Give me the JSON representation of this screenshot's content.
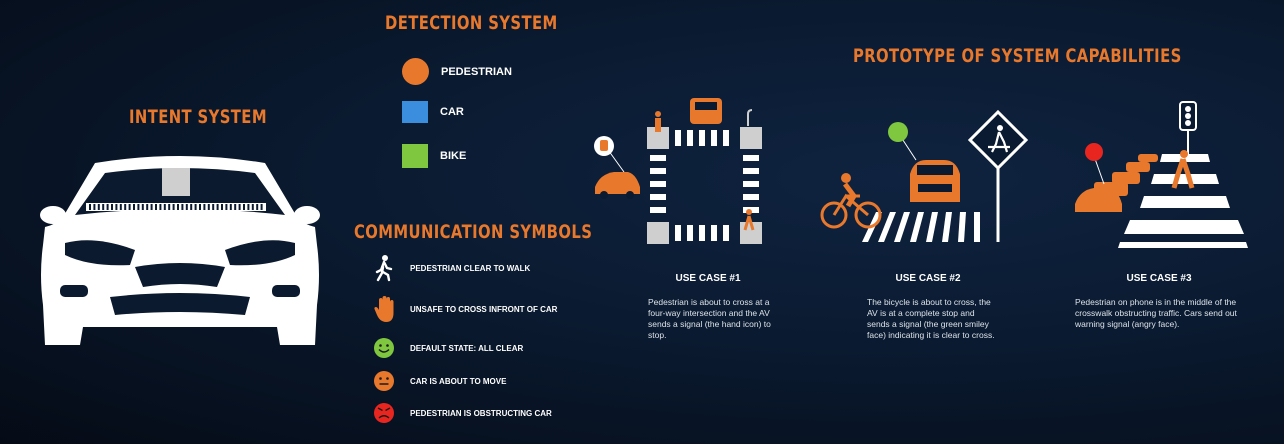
{
  "intent": {
    "title": "INTENT SYSTEM"
  },
  "detection": {
    "title": "DETECTION SYSTEM",
    "items": [
      {
        "label": "PEDESTRIAN",
        "color": "#e8782c",
        "shape": "circle"
      },
      {
        "label": "CAR",
        "color": "#3b8ede",
        "shape": "square"
      },
      {
        "label": "BIKE",
        "color": "#7ec73f",
        "shape": "square"
      }
    ]
  },
  "communication": {
    "title": "COMMUNICATION SYMBOLS",
    "items": [
      {
        "icon": "walking-pedestrian-icon",
        "label": "PEDESTRIAN CLEAR TO WALK"
      },
      {
        "icon": "stop-hand-icon",
        "label": "UNSAFE TO CROSS INFRONT OF CAR"
      },
      {
        "icon": "smiley-face-icon",
        "label": "DEFAULT STATE: ALL CLEAR"
      },
      {
        "icon": "neutral-face-icon",
        "label": "CAR IS ABOUT TO MOVE"
      },
      {
        "icon": "angry-face-icon",
        "label": "PEDESTRIAN IS OBSTRUCTING CAR"
      }
    ]
  },
  "prototype": {
    "title": "PROTOTYPE OF SYSTEM CAPABILITIES",
    "use_cases": [
      {
        "title": "USE CASE #1",
        "description": "Pedestrian is about to cross at a four-way intersection and the AV sends a signal (the hand icon) to stop."
      },
      {
        "title": "USE CASE #2",
        "description": "The bicycle is about to cross, the AV is at a complete stop and sends a signal (the green smiley face) indicating it is clear to cross."
      },
      {
        "title": "USE CASE #3",
        "description": "Pedestrian on phone is in the middle of the crosswalk obstructing traffic. Cars send out warning signal (angry face)."
      }
    ]
  },
  "colors": {
    "orange": "#e8782c",
    "blue": "#3b8ede",
    "green": "#7ec73f",
    "red": "#e8261f",
    "white": "#ffffff"
  }
}
